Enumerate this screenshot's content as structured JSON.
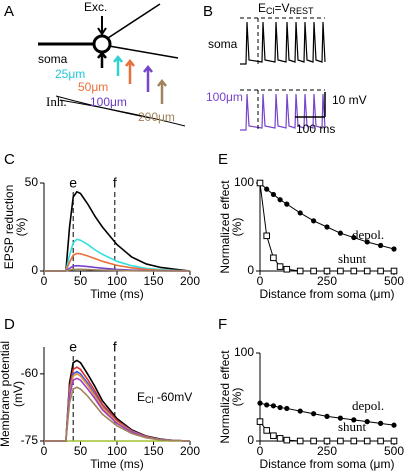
{
  "diagram": {
    "panel_label": "A",
    "exc": "Exc.",
    "soma": "soma",
    "inh": "Inh.",
    "d25": "25μm",
    "d50": "50μm",
    "d100": "100μm",
    "d200": "200μm"
  },
  "traces": {
    "panel_label": "B",
    "condition": [
      "E",
      "Cl",
      "=V",
      "REST"
    ],
    "soma": "soma",
    "dend": "100μm",
    "scale_v": "10 mV",
    "scale_t": "100 ms"
  },
  "chart_data": [
    {
      "type": "line",
      "panel_label": "C",
      "xlabel": "Time (ms)",
      "ylabel": [
        "EPSP reduction",
        "(%)"
      ],
      "x": [
        0,
        30,
        35,
        40,
        45,
        50,
        60,
        70,
        80,
        100,
        120,
        140,
        160,
        180,
        200
      ],
      "series": [
        {
          "color": "#000000",
          "values": [
            0,
            0,
            25,
            42,
            45,
            44,
            38,
            31,
            25,
            15,
            8,
            4,
            2,
            1,
            0
          ]
        },
        {
          "color": "#33e0e0",
          "values": [
            0,
            0,
            9,
            16,
            18,
            17.5,
            15,
            12,
            9.5,
            5.5,
            3,
            1.5,
            0.8,
            0.3,
            0
          ]
        },
        {
          "color": "#e8703a",
          "values": [
            0,
            0,
            5,
            9,
            10,
            9.8,
            8.5,
            7,
            5.5,
            3.2,
            1.8,
            0.9,
            0.4,
            0.2,
            0
          ]
        },
        {
          "color": "#7744cc",
          "values": [
            0,
            0,
            1.5,
            2.8,
            3,
            2.9,
            2.5,
            2,
            1.6,
            0.9,
            0.5,
            0.2,
            0.1,
            0,
            0
          ]
        },
        {
          "color": "#a0845c",
          "values": [
            0,
            0,
            0.5,
            0.9,
            1,
            1,
            0.8,
            0.6,
            0.5,
            0.3,
            0.1,
            0,
            0,
            0,
            0
          ]
        }
      ],
      "xlim": [
        0,
        200
      ],
      "xticks": [
        0,
        50,
        100,
        150,
        200
      ],
      "ylim": [
        0,
        50
      ],
      "yticks": [
        0,
        50
      ],
      "vlines": [
        {
          "x": 40,
          "label": "e"
        },
        {
          "x": 97,
          "label": "f"
        }
      ]
    },
    {
      "type": "line",
      "panel_label": "D",
      "xlabel": "Time (ms)",
      "ylabel": [
        "Membrane potential",
        "(mV)"
      ],
      "annotation": [
        "E",
        "Cl",
        " -60mV"
      ],
      "x": [
        0,
        30,
        35,
        40,
        45,
        50,
        60,
        70,
        80,
        100,
        120,
        140,
        160,
        180,
        200
      ],
      "series": [
        {
          "color": "#a0c030",
          "values": [
            -75,
            -75,
            -75,
            -75,
            -75,
            -75,
            -75,
            -75,
            -75,
            -75,
            -75,
            -75,
            -75,
            -75,
            -75
          ]
        },
        {
          "color": "#000000",
          "values": [
            -75,
            -75,
            -62,
            -57.5,
            -57,
            -57.5,
            -60.1,
            -62.9,
            -66,
            -70,
            -72.5,
            -73.9,
            -74.6,
            -74.9,
            -75
          ]
        },
        {
          "color": "#e03030",
          "values": [
            -75,
            -75,
            -63.1,
            -59,
            -58.5,
            -59,
            -61.3,
            -63.9,
            -66.8,
            -70.4,
            -72.7,
            -74,
            -74.7,
            -74.9,
            -75
          ]
        },
        {
          "color": "#4060e0",
          "values": [
            -75,
            -75,
            -63.8,
            -60,
            -59.5,
            -60,
            -62.1,
            -64.6,
            -67.3,
            -70.7,
            -72.8,
            -74.1,
            -74.7,
            -74.9,
            -75
          ]
        },
        {
          "color": "#e8903a",
          "values": [
            -75,
            -75,
            -64.2,
            -60.5,
            -60,
            -60.5,
            -62.6,
            -65,
            -67.5,
            -70.8,
            -72.9,
            -74.1,
            -74.7,
            -74.9,
            -75
          ]
        },
        {
          "color": "#a040c0",
          "values": [
            -75,
            -75,
            -64.9,
            -61.4,
            -61,
            -61.4,
            -63.4,
            -65.6,
            -68,
            -71.1,
            -73,
            -74.2,
            -74.7,
            -74.9,
            -75
          ]
        },
        {
          "color": "#a0845c",
          "values": [
            -75,
            -75,
            -66.4,
            -63.4,
            -63,
            -63.4,
            -65,
            -67,
            -69,
            -71.6,
            -73.3,
            -74.3,
            -74.8,
            -74.9,
            -75
          ]
        }
      ],
      "xlim": [
        0,
        200
      ],
      "xticks": [
        0,
        50,
        100,
        150,
        200
      ],
      "ylim": [
        -75,
        -54
      ],
      "yticks": [
        -75,
        -60
      ],
      "vlines": [
        {
          "x": 40,
          "label": "e"
        },
        {
          "x": 97,
          "label": "f"
        }
      ]
    },
    {
      "type": "line",
      "panel_label": "E",
      "xlabel": "Distance from soma (μm)",
      "ylabel": [
        "Normalized effect",
        "(%)"
      ],
      "x": [
        0,
        25,
        50,
        75,
        100,
        150,
        200,
        250,
        300,
        350,
        400,
        450,
        500
      ],
      "series": [
        {
          "name": "depol.",
          "color": "#000000",
          "marker": "circle",
          "values": [
            100,
            93,
            87,
            81,
            76,
            66,
            57,
            50,
            43,
            38,
            33,
            29,
            25
          ]
        },
        {
          "name": "shunt",
          "color": "#000000",
          "marker": "square",
          "values": [
            100,
            40,
            15,
            5,
            2,
            0,
            0,
            0,
            0,
            0,
            0,
            0,
            0
          ]
        }
      ],
      "xlim": [
        0,
        500
      ],
      "xticks": [
        0,
        250,
        500
      ],
      "ylim": [
        0,
        100
      ],
      "yticks": [
        0,
        100
      ]
    },
    {
      "type": "line",
      "panel_label": "F",
      "xlabel": "Distance from soma (μm)",
      "ylabel": [
        "Normalized effect",
        "(%)"
      ],
      "x": [
        0,
        25,
        50,
        75,
        100,
        150,
        200,
        250,
        300,
        350,
        400,
        450,
        500
      ],
      "series": [
        {
          "name": "depol.",
          "color": "#000000",
          "marker": "circle",
          "values": [
            43,
            41,
            40,
            38,
            37,
            34,
            31,
            28,
            26,
            24,
            22,
            20,
            18
          ]
        },
        {
          "name": "shunt",
          "color": "#000000",
          "marker": "square",
          "values": [
            22,
            12,
            6,
            3,
            1,
            0,
            0,
            0,
            0,
            0,
            0,
            0,
            0
          ]
        }
      ],
      "xlim": [
        0,
        500
      ],
      "xticks": [
        0,
        250,
        500
      ],
      "ylim": [
        0,
        100
      ],
      "yticks": [
        0,
        100
      ]
    }
  ]
}
